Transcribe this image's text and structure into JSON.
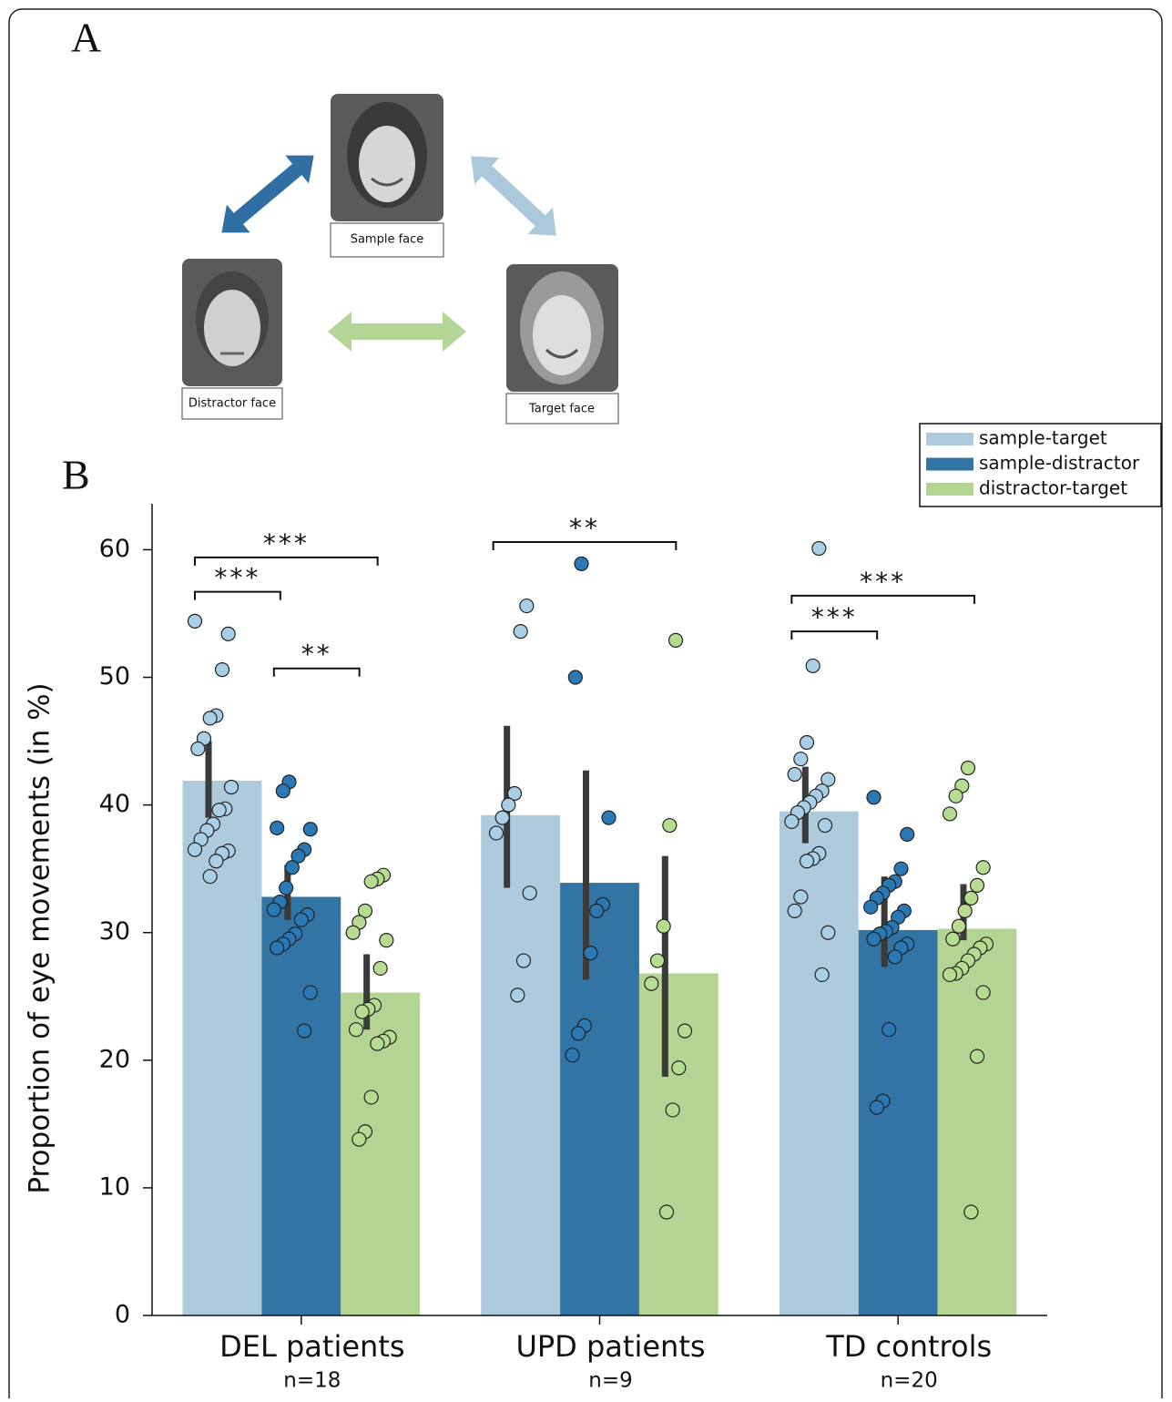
{
  "panel_a": {
    "label": "A",
    "nodes": [
      {
        "label": "Sample face"
      },
      {
        "label": "Distractor face"
      },
      {
        "label": "Target face"
      }
    ]
  },
  "panel_b": {
    "label": "B"
  },
  "chart_data": {
    "type": "bar",
    "y_label": "Proportion of eye movements (in %)",
    "categories": [
      "DEL patients",
      "UPD patients",
      "TD controls"
    ],
    "category_notes": [
      "n=18",
      "n=9",
      "n=20"
    ],
    "ylim": [
      0,
      63.6
    ],
    "yticks": [
      0,
      10,
      20,
      30,
      40,
      50,
      60
    ],
    "legend": "upper right",
    "series": [
      {
        "name": "sample-target",
        "color": "#aecbdd",
        "point_color": "#a9cfe6",
        "values": [
          41.9,
          39.2,
          39.5
        ],
        "ci": [
          [
            39.0,
            45.0
          ],
          [
            33.5,
            46.2
          ],
          [
            37.0,
            43.0
          ]
        ],
        "points": [
          [
            54.4,
            53.4,
            50.6,
            47.0,
            46.8,
            45.2,
            44.4,
            41.4,
            39.7,
            39.6,
            38.5,
            38.0,
            37.3,
            36.5,
            36.4,
            36.2,
            35.6,
            34.4
          ],
          [
            55.6,
            53.6,
            40.9,
            40.0,
            39.0,
            37.8,
            33.1,
            27.8,
            25.1
          ],
          [
            60.1,
            50.9,
            44.9,
            43.6,
            42.4,
            42.0,
            41.1,
            40.7,
            40.2,
            39.8,
            39.4,
            38.7,
            38.4,
            36.2,
            35.8,
            35.6,
            32.8,
            31.7,
            30.0,
            26.7
          ]
        ]
      },
      {
        "name": "sample-distractor",
        "color": "#3274a3",
        "point_color": "#2a78b4",
        "values": [
          32.8,
          33.9,
          30.2
        ],
        "ci": [
          [
            31.0,
            35.3
          ],
          [
            26.3,
            42.7
          ],
          [
            27.3,
            34.4
          ]
        ],
        "points": [
          [
            41.8,
            41.1,
            38.2,
            38.1,
            36.5,
            36.0,
            35.1,
            33.5,
            32.4,
            31.8,
            31.4,
            31.0,
            29.9,
            29.5,
            29.1,
            28.8,
            25.3,
            22.3
          ],
          [
            58.9,
            50.0,
            39.0,
            32.2,
            31.7,
            28.4,
            22.7,
            22.1,
            20.4
          ],
          [
            40.6,
            37.7,
            35.0,
            34.0,
            33.7,
            33.1,
            32.7,
            32.0,
            31.7,
            31.2,
            30.4,
            30.1,
            29.9,
            29.5,
            29.1,
            28.8,
            28.1,
            22.4,
            16.8,
            16.3
          ]
        ]
      },
      {
        "name": "distractor-target",
        "color": "#b4d494",
        "point_color": "#b5dc90",
        "values": [
          25.3,
          26.8,
          30.3
        ],
        "ci": [
          [
            22.4,
            28.3
          ],
          [
            18.7,
            36.0
          ],
          [
            29.4,
            33.8
          ]
        ],
        "points": [
          [
            34.5,
            34.2,
            34.0,
            31.7,
            30.8,
            30.0,
            29.4,
            27.2,
            24.3,
            24.0,
            23.8,
            22.4,
            21.8,
            21.5,
            21.3,
            17.1,
            14.4,
            13.8
          ],
          [
            52.9,
            38.4,
            30.5,
            27.8,
            26.0,
            22.3,
            19.4,
            16.1,
            8.1
          ],
          [
            42.9,
            41.5,
            40.7,
            39.3,
            35.1,
            33.7,
            32.7,
            31.7,
            30.5,
            29.5,
            29.1,
            28.8,
            28.3,
            27.8,
            27.2,
            26.8,
            26.7,
            25.3,
            20.3,
            8.1
          ]
        ]
      }
    ],
    "significance": [
      {
        "category": 0,
        "from": 0,
        "to": 2,
        "y": 59.4,
        "label": "***"
      },
      {
        "category": 0,
        "from": 0,
        "to": 1,
        "y": 56.7,
        "label": "***"
      },
      {
        "category": 0,
        "from": 1,
        "to": 2,
        "y": 50.7,
        "label": "**"
      },
      {
        "category": 1,
        "from": 0,
        "to": 2,
        "y": 60.6,
        "label": "**"
      },
      {
        "category": 2,
        "from": 0,
        "to": 2,
        "y": 56.4,
        "label": "***"
      },
      {
        "category": 2,
        "from": 0,
        "to": 1,
        "y": 53.6,
        "label": "***"
      }
    ]
  }
}
